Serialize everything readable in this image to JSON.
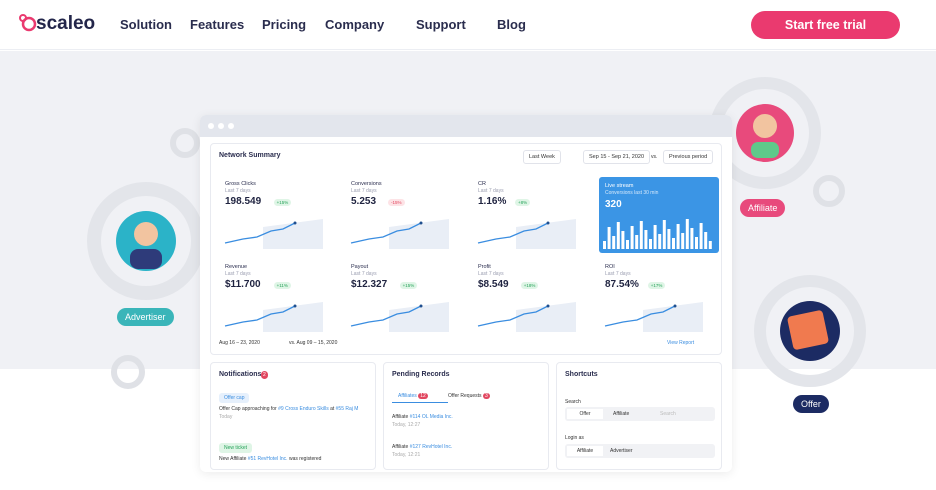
{
  "nav": {
    "logo": "scaleo",
    "links": [
      "Solution",
      "Features",
      "Pricing",
      "Company",
      "Support",
      "Blog"
    ],
    "cta": "Start free trial"
  },
  "dashboard": {
    "title": "Network Summary",
    "period": "Last Week",
    "range": "Sep 15 - Sep 21, 2020",
    "vs": "vs.",
    "compare": "Previous period",
    "metrics": [
      {
        "label": "Gross Clicks",
        "sub": "Last 7 days",
        "value": "198.549",
        "change": "+15%"
      },
      {
        "label": "Conversions",
        "sub": "Last 7 days",
        "value": "5.253",
        "change": "-15%"
      },
      {
        "label": "CR",
        "sub": "Last 7 days",
        "value": "1.16%",
        "change": "+8%"
      },
      {
        "label": "Revenue",
        "sub": "Last 7 days",
        "value": "$11.700",
        "change": "+11%"
      },
      {
        "label": "Payout",
        "sub": "Last 7 days",
        "value": "$12.327",
        "change": "+15%"
      },
      {
        "label": "Profit",
        "sub": "Last 7 days",
        "value": "$8.549",
        "change": "+18%"
      },
      {
        "label": "ROI",
        "sub": "Last 7 days",
        "value": "87.54%",
        "change": "+17%"
      }
    ],
    "live": {
      "label": "Live stream",
      "sub": "Conversions last 30 min",
      "value": "320"
    },
    "legend": {
      "current": "Aug 16 – 23, 2020",
      "previous": "vs. Aug 09 – 15, 2020"
    },
    "view_report": "View Report"
  },
  "notifications": {
    "title": "Notifications",
    "badge": "2",
    "items": [
      {
        "tag": "Offer cap",
        "text": "Offer Cap approaching for",
        "link1": "#9 Cross Enduro Skills",
        "mid": "at",
        "link2": "#55 Raj M",
        "time": "Today"
      },
      {
        "tag": "New ticket",
        "text": "New Affiliate",
        "link1": "#51 RevHotel Inc.",
        "mid": "was registered"
      }
    ]
  },
  "pending": {
    "title": "Pending Records",
    "tabs": [
      {
        "label": "Affiliates",
        "badge": "12"
      },
      {
        "label": "Offer Requests",
        "badge": "3"
      }
    ],
    "items": [
      {
        "label": "Affiliate",
        "link": "#114 OL Media Inc.",
        "time": "Today, 12:27"
      },
      {
        "label": "Affiliate",
        "link": "#127 RevHotel Inc.",
        "time": "Today, 12:21"
      }
    ]
  },
  "shortcuts": {
    "title": "Shortcuts",
    "search_label": "Search",
    "search_tabs": [
      "Offer",
      "Affiliate"
    ],
    "search_placeholder": "Search",
    "login_label": "Login as",
    "login_tabs": [
      "Affiliate",
      "Advertiser"
    ]
  },
  "tags": {
    "advertiser": "Advertiser",
    "affiliate": "Affiliate",
    "offer": "Offer"
  }
}
